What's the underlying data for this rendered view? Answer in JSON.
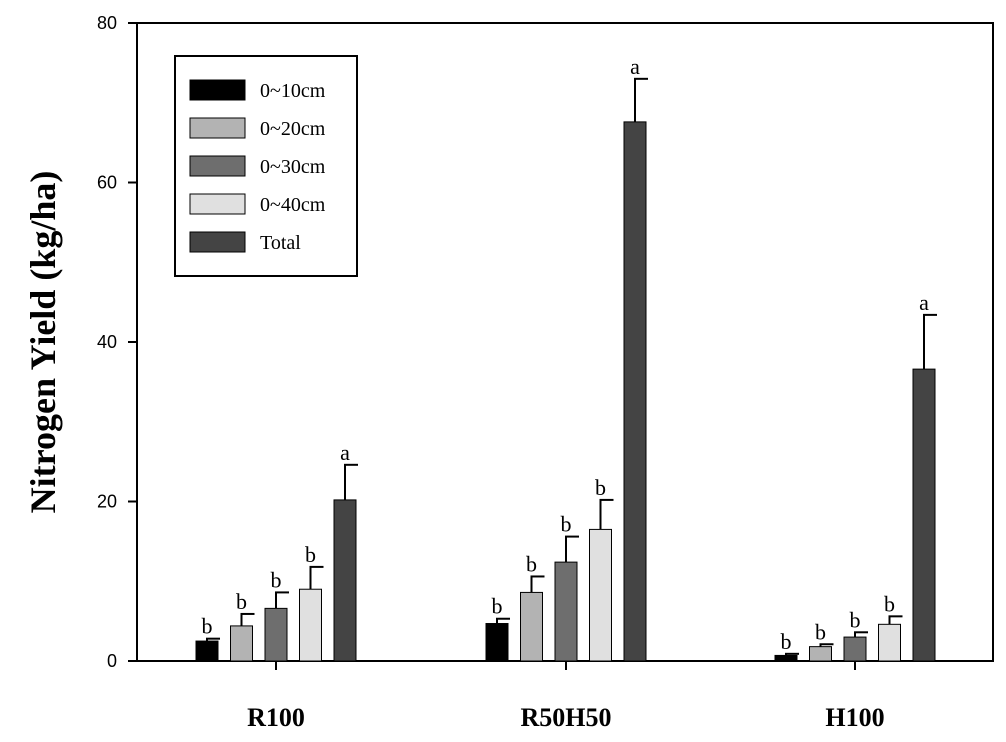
{
  "chart_data": {
    "type": "bar",
    "title": "",
    "xlabel": "",
    "ylabel": "Nitrogen Yield (kg/ha)",
    "ylim": [
      0,
      80
    ],
    "yticks": [
      "0",
      "20",
      "40",
      "60",
      "80"
    ],
    "categories": [
      "R100",
      "R50H50",
      "H100"
    ],
    "legend_position": "top-left",
    "grid": false,
    "series": [
      {
        "name": "0~10cm",
        "color": "#000000",
        "values": [
          2.5,
          4.7,
          0.7
        ],
        "errors": [
          0.3,
          0.6,
          0.2
        ],
        "sig": [
          "b",
          "b",
          "b"
        ]
      },
      {
        "name": "0~20cm",
        "color": "#b3b3b3",
        "values": [
          4.4,
          8.6,
          1.8
        ],
        "errors": [
          1.5,
          2.0,
          0.3
        ],
        "sig": [
          "b",
          "b",
          "b"
        ]
      },
      {
        "name": "0~30cm",
        "color": "#6e6e6e",
        "values": [
          6.6,
          12.4,
          3.0
        ],
        "errors": [
          2.0,
          3.2,
          0.6
        ],
        "sig": [
          "b",
          "b",
          "b"
        ]
      },
      {
        "name": "0~40cm",
        "color": "#e0e0e0",
        "values": [
          9.0,
          16.5,
          4.6
        ],
        "errors": [
          2.8,
          3.7,
          1.0
        ],
        "sig": [
          "b",
          "b",
          "b"
        ]
      },
      {
        "name": "Total",
        "color": "#444444",
        "values": [
          20.2,
          67.6,
          36.6
        ],
        "errors": [
          4.4,
          5.4,
          6.8
        ],
        "sig": [
          "a",
          "a",
          "a"
        ]
      }
    ]
  }
}
